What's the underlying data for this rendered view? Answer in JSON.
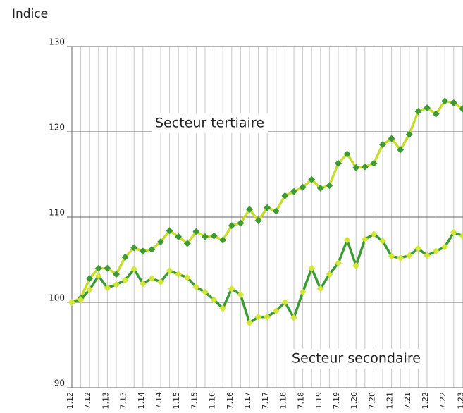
{
  "chart_data": {
    "type": "line",
    "y_label": "Indice",
    "categories": [
      "1.12",
      null,
      "7.12",
      null,
      "1.13",
      null,
      "7.13",
      null,
      "1.14",
      null,
      "7.14",
      null,
      "1.15",
      null,
      "7.15",
      null,
      "1.16",
      null,
      "7.16",
      null,
      "1.17",
      null,
      "7.17",
      null,
      "1.18",
      null,
      "7.18",
      null,
      "1.19",
      null,
      "7.19",
      null,
      "1.20",
      null,
      "7.20",
      null,
      "1.21",
      null,
      "7.21",
      null,
      "1.22",
      null,
      "7.22",
      null,
      "1.23"
    ],
    "series": [
      {
        "name": "Secteur tertiaire",
        "color": "#c6dd2c",
        "marker_color": "#3c9a33",
        "values": [
          100,
          100.5,
          102.8,
          104,
          104,
          103.3,
          105.3,
          106.4,
          106,
          106.2,
          107.1,
          108.4,
          107.7,
          106.9,
          108.3,
          107.7,
          107.8,
          107.3,
          109,
          109.3,
          110.9,
          109.6,
          111.1,
          110.7,
          112.5,
          113,
          113.5,
          114.4,
          113.4,
          113.7,
          116.3,
          117.4,
          115.8,
          115.9,
          116.3,
          118.5,
          119.2,
          117.9,
          119.7,
          122.4,
          122.8,
          122.1,
          123.6,
          123.4,
          122.7
        ]
      },
      {
        "name": "Secteur secondaire",
        "color": "#3c9a33",
        "marker_color": "#d2e63a",
        "values": [
          100,
          100.3,
          101.5,
          103.1,
          101.7,
          102.1,
          102.6,
          103.9,
          102.2,
          102.8,
          102.4,
          103.7,
          103.3,
          102.9,
          101.8,
          101.2,
          100.3,
          99.3,
          101.6,
          100.9,
          97.6,
          98.3,
          98.3,
          99,
          100,
          98.2,
          101.2,
          104,
          101.6,
          103.3,
          104.6,
          107.3,
          104.3,
          107.4,
          108,
          107.2,
          105.4,
          105.2,
          105.5,
          106.3,
          105.5,
          106,
          106.5,
          108.2,
          107.8
        ]
      }
    ],
    "annotations": [
      "Secteur tertiaire",
      "Secteur secondaire"
    ],
    "ylim": [
      90,
      130
    ],
    "yticks": [
      90,
      100,
      110,
      120,
      130
    ],
    "grid": true
  }
}
